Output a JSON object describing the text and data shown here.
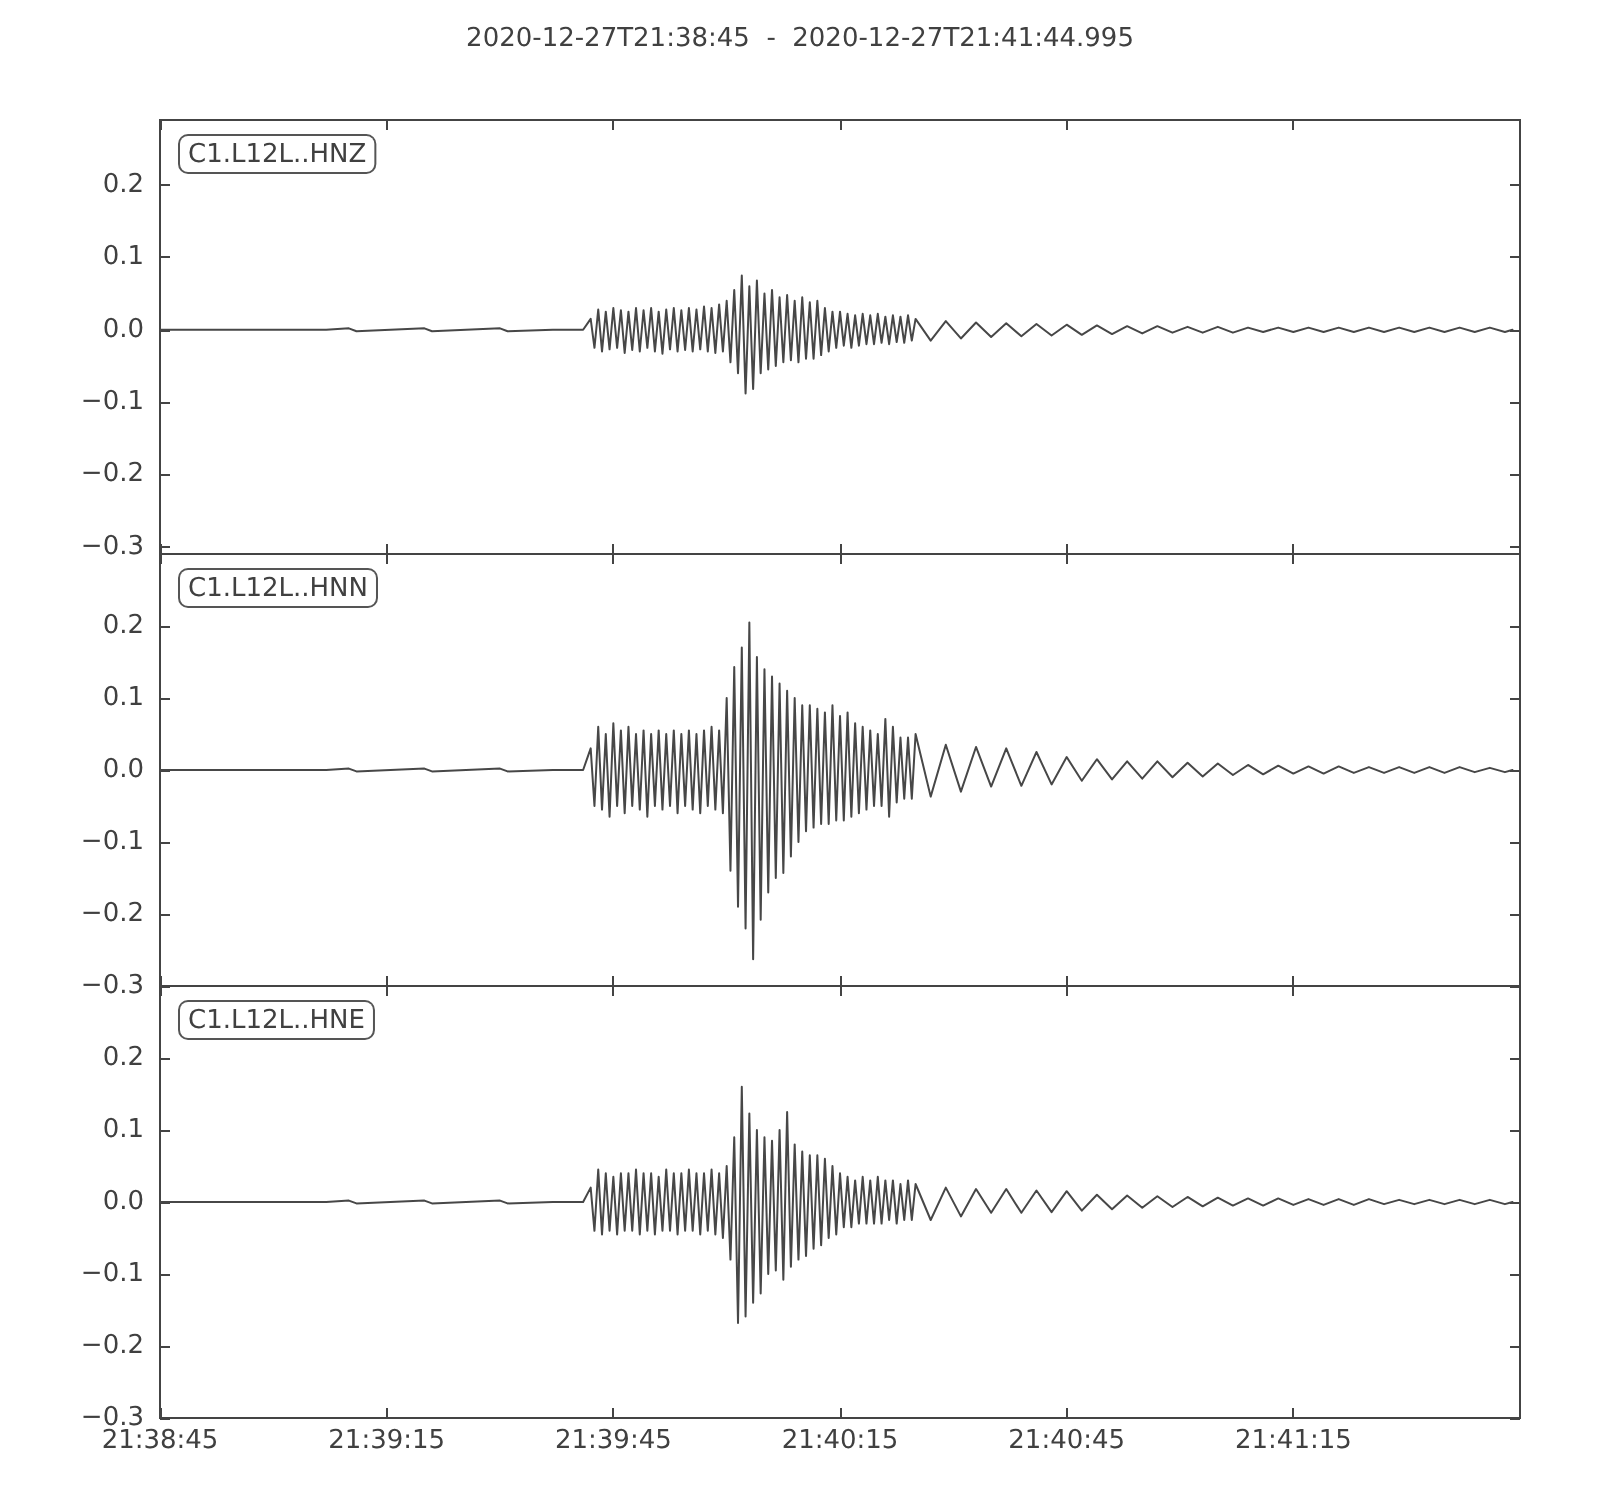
{
  "chart_data": [
    {
      "type": "line",
      "title": "2020-12-27T21:38:45  -  2020-12-27T21:41:44.995",
      "annotations": [
        "C1.L12L..HNZ"
      ],
      "color": "#474747",
      "x": [
        "2020-12-27T21:38:45",
        "2020-12-27T21:39:07",
        "2020-12-27T21:39:10",
        "2020-12-27T21:39:11",
        "2020-12-27T21:39:20",
        "2020-12-27T21:39:21",
        "2020-12-27T21:39:30",
        "2020-12-27T21:39:31",
        "2020-12-27T21:39:37",
        "2020-12-27T21:39:41",
        "2020-12-27T21:39:42",
        "2020-12-27T21:39:42.5",
        "2020-12-27T21:39:43",
        "2020-12-27T21:39:43.5",
        "2020-12-27T21:39:44",
        "2020-12-27T21:39:44.5",
        "2020-12-27T21:39:45",
        "2020-12-27T21:39:45.5",
        "2020-12-27T21:39:46",
        "2020-12-27T21:39:46.5",
        "2020-12-27T21:39:47",
        "2020-12-27T21:39:47.5",
        "2020-12-27T21:39:48",
        "2020-12-27T21:39:48.5",
        "2020-12-27T21:39:49",
        "2020-12-27T21:39:49.5",
        "2020-12-27T21:39:50",
        "2020-12-27T21:39:50.5",
        "2020-12-27T21:39:51",
        "2020-12-27T21:39:51.5",
        "2020-12-27T21:39:52",
        "2020-12-27T21:39:52.5",
        "2020-12-27T21:39:53",
        "2020-12-27T21:39:53.5",
        "2020-12-27T21:39:54",
        "2020-12-27T21:39:54.5",
        "2020-12-27T21:39:55",
        "2020-12-27T21:39:55.5",
        "2020-12-27T21:39:56",
        "2020-12-27T21:39:56.5",
        "2020-12-27T21:39:57",
        "2020-12-27T21:39:57.5",
        "2020-12-27T21:39:58",
        "2020-12-27T21:39:58.5",
        "2020-12-27T21:39:59",
        "2020-12-27T21:39:59.5",
        "2020-12-27T21:40:00",
        "2020-12-27T21:40:00.5",
        "2020-12-27T21:40:01",
        "2020-12-27T21:40:01.5",
        "2020-12-27T21:40:02",
        "2020-12-27T21:40:02.5",
        "2020-12-27T21:40:03",
        "2020-12-27T21:40:03.5",
        "2020-12-27T21:40:04",
        "2020-12-27T21:40:04.5",
        "2020-12-27T21:40:05",
        "2020-12-27T21:40:05.5",
        "2020-12-27T21:40:06",
        "2020-12-27T21:40:06.5",
        "2020-12-27T21:40:07",
        "2020-12-27T21:40:07.5",
        "2020-12-27T21:40:08",
        "2020-12-27T21:40:08.5",
        "2020-12-27T21:40:09",
        "2020-12-27T21:40:09.5",
        "2020-12-27T21:40:10",
        "2020-12-27T21:40:10.5",
        "2020-12-27T21:40:11",
        "2020-12-27T21:40:11.5",
        "2020-12-27T21:40:12",
        "2020-12-27T21:40:12.5",
        "2020-12-27T21:40:13",
        "2020-12-27T21:40:13.5",
        "2020-12-27T21:40:14",
        "2020-12-27T21:40:14.5",
        "2020-12-27T21:40:15",
        "2020-12-27T21:40:15.5",
        "2020-12-27T21:40:16",
        "2020-12-27T21:40:16.5",
        "2020-12-27T21:40:17",
        "2020-12-27T21:40:17.5",
        "2020-12-27T21:40:18",
        "2020-12-27T21:40:18.5",
        "2020-12-27T21:40:19",
        "2020-12-27T21:40:19.5",
        "2020-12-27T21:40:20",
        "2020-12-27T21:40:20.5",
        "2020-12-27T21:40:21",
        "2020-12-27T21:40:21.5",
        "2020-12-27T21:40:22",
        "2020-12-27T21:40:22.5",
        "2020-12-27T21:40:23",
        "2020-12-27T21:40:23.5",
        "2020-12-27T21:40:24",
        "2020-12-27T21:40:24.5",
        "2020-12-27T21:40:25",
        "2020-12-27T21:40:27",
        "2020-12-27T21:40:29",
        "2020-12-27T21:40:31",
        "2020-12-27T21:40:33",
        "2020-12-27T21:40:35",
        "2020-12-27T21:40:37",
        "2020-12-27T21:40:39",
        "2020-12-27T21:40:41",
        "2020-12-27T21:40:43",
        "2020-12-27T21:40:45",
        "2020-12-27T21:40:47",
        "2020-12-27T21:40:49",
        "2020-12-27T21:40:51",
        "2020-12-27T21:40:53",
        "2020-12-27T21:40:55",
        "2020-12-27T21:40:57",
        "2020-12-27T21:40:59",
        "2020-12-27T21:41:01",
        "2020-12-27T21:41:03",
        "2020-12-27T21:41:05",
        "2020-12-27T21:41:07",
        "2020-12-27T21:41:09",
        "2020-12-27T21:41:11",
        "2020-12-27T21:41:13",
        "2020-12-27T21:41:15",
        "2020-12-27T21:41:17",
        "2020-12-27T21:41:19",
        "2020-12-27T21:41:21",
        "2020-12-27T21:41:23",
        "2020-12-27T21:41:25",
        "2020-12-27T21:41:27",
        "2020-12-27T21:41:29",
        "2020-12-27T21:41:31",
        "2020-12-27T21:41:33",
        "2020-12-27T21:41:35",
        "2020-12-27T21:41:37",
        "2020-12-27T21:41:39",
        "2020-12-27T21:41:41",
        "2020-12-27T21:41:43",
        "2020-12-27T21:41:44"
      ],
      "values": [
        0,
        0,
        0.002,
        -0.002,
        0.002,
        -0.002,
        0.002,
        -0.002,
        0,
        0,
        0.015,
        -0.025,
        0.028,
        -0.03,
        0.025,
        -0.027,
        0.03,
        -0.025,
        0.027,
        -0.032,
        0.025,
        -0.028,
        0.03,
        -0.03,
        0.027,
        -0.025,
        0.03,
        -0.03,
        0.025,
        -0.033,
        0.028,
        -0.027,
        0.03,
        -0.03,
        0.027,
        -0.028,
        0.03,
        -0.03,
        0.028,
        -0.027,
        0.032,
        -0.03,
        0.03,
        -0.032,
        0.035,
        -0.03,
        0.04,
        -0.045,
        0.055,
        -0.06,
        0.075,
        -0.088,
        0.06,
        -0.082,
        0.068,
        -0.06,
        0.05,
        -0.055,
        0.055,
        -0.05,
        0.045,
        -0.045,
        0.048,
        -0.042,
        0.04,
        -0.045,
        0.045,
        -0.04,
        0.038,
        -0.04,
        0.04,
        -0.035,
        0.03,
        -0.03,
        0.025,
        -0.025,
        0.025,
        -0.022,
        0.022,
        -0.025,
        0.02,
        -0.022,
        0.022,
        -0.02,
        0.02,
        -0.02,
        0.022,
        -0.018,
        0.018,
        -0.02,
        0.02,
        -0.017,
        0.018,
        -0.018,
        0.02,
        -0.015,
        0.015,
        -0.015,
        0.012,
        -0.012,
        0.01,
        -0.01,
        0.009,
        -0.009,
        0.008,
        -0.008,
        0.007,
        -0.007,
        0.006,
        -0.006,
        0.005,
        -0.005,
        0.005,
        -0.004,
        0.004,
        -0.004,
        0.004,
        -0.004,
        0.003,
        -0.003,
        0.003,
        -0.003,
        0.003,
        -0.003,
        0.003,
        -0.003,
        0.003,
        -0.003,
        0.003,
        -0.003,
        0.003,
        -0.003,
        0.003,
        -0.003,
        0.003,
        -0.003,
        0
      ],
      "xlim": [
        "2020-12-27T21:38:45",
        "2020-12-27T21:41:44.995"
      ],
      "xticks": [
        {
          "value": "2020-12-27T21:38:45",
          "label": null
        },
        {
          "value": "2020-12-27T21:39:15",
          "label": null
        },
        {
          "value": "2020-12-27T21:39:45",
          "label": null
        },
        {
          "value": "2020-12-27T21:40:15",
          "label": null
        },
        {
          "value": "2020-12-27T21:40:45",
          "label": null
        },
        {
          "value": "2020-12-27T21:41:15",
          "label": null
        }
      ],
      "ylim": [
        -0.31,
        0.29
      ],
      "yticks": [
        {
          "value": -0.3,
          "label": "−0.3"
        },
        {
          "value": -0.2,
          "label": "−0.2"
        },
        {
          "value": -0.1,
          "label": "−0.1"
        },
        {
          "value": 0,
          "label": "0.0"
        },
        {
          "value": 0.1,
          "label": "0.1"
        },
        {
          "value": 0.2,
          "label": "0.2"
        }
      ],
      "tick_labels": "y"
    },
    {
      "type": "line",
      "annotations": [
        "C1.L12L..HNN"
      ],
      "color": "#474747",
      "x": [
        "2020-12-27T21:38:45",
        "2020-12-27T21:39:07",
        "2020-12-27T21:39:10",
        "2020-12-27T21:39:11",
        "2020-12-27T21:39:20",
        "2020-12-27T21:39:21",
        "2020-12-27T21:39:30",
        "2020-12-27T21:39:31",
        "2020-12-27T21:39:37",
        "2020-12-27T21:39:41",
        "2020-12-27T21:39:42",
        "2020-12-27T21:39:42.5",
        "2020-12-27T21:39:43",
        "2020-12-27T21:39:43.5",
        "2020-12-27T21:39:44",
        "2020-12-27T21:39:44.5",
        "2020-12-27T21:39:45",
        "2020-12-27T21:39:45.5",
        "2020-12-27T21:39:46",
        "2020-12-27T21:39:46.5",
        "2020-12-27T21:39:47",
        "2020-12-27T21:39:47.5",
        "2020-12-27T21:39:48",
        "2020-12-27T21:39:48.5",
        "2020-12-27T21:39:49",
        "2020-12-27T21:39:49.5",
        "2020-12-27T21:39:50",
        "2020-12-27T21:39:50.5",
        "2020-12-27T21:39:51",
        "2020-12-27T21:39:51.5",
        "2020-12-27T21:39:52",
        "2020-12-27T21:39:52.5",
        "2020-12-27T21:39:53",
        "2020-12-27T21:39:53.5",
        "2020-12-27T21:39:54",
        "2020-12-27T21:39:54.5",
        "2020-12-27T21:39:55",
        "2020-12-27T21:39:55.5",
        "2020-12-27T21:39:56",
        "2020-12-27T21:39:56.5",
        "2020-12-27T21:39:57",
        "2020-12-27T21:39:57.5",
        "2020-12-27T21:39:58",
        "2020-12-27T21:39:58.5",
        "2020-12-27T21:39:59",
        "2020-12-27T21:39:59.5",
        "2020-12-27T21:40:00",
        "2020-12-27T21:40:00.5",
        "2020-12-27T21:40:01",
        "2020-12-27T21:40:01.5",
        "2020-12-27T21:40:02",
        "2020-12-27T21:40:02.5",
        "2020-12-27T21:40:03",
        "2020-12-27T21:40:03.5",
        "2020-12-27T21:40:04",
        "2020-12-27T21:40:04.5",
        "2020-12-27T21:40:05",
        "2020-12-27T21:40:05.5",
        "2020-12-27T21:40:06",
        "2020-12-27T21:40:06.5",
        "2020-12-27T21:40:07",
        "2020-12-27T21:40:07.5",
        "2020-12-27T21:40:08",
        "2020-12-27T21:40:08.5",
        "2020-12-27T21:40:09",
        "2020-12-27T21:40:09.5",
        "2020-12-27T21:40:10",
        "2020-12-27T21:40:10.5",
        "2020-12-27T21:40:11",
        "2020-12-27T21:40:11.5",
        "2020-12-27T21:40:12",
        "2020-12-27T21:40:12.5",
        "2020-12-27T21:40:13",
        "2020-12-27T21:40:13.5",
        "2020-12-27T21:40:14",
        "2020-12-27T21:40:14.5",
        "2020-12-27T21:40:15",
        "2020-12-27T21:40:15.5",
        "2020-12-27T21:40:16",
        "2020-12-27T21:40:16.5",
        "2020-12-27T21:40:17",
        "2020-12-27T21:40:17.5",
        "2020-12-27T21:40:18",
        "2020-12-27T21:40:18.5",
        "2020-12-27T21:40:19",
        "2020-12-27T21:40:19.5",
        "2020-12-27T21:40:20",
        "2020-12-27T21:40:20.5",
        "2020-12-27T21:40:21",
        "2020-12-27T21:40:21.5",
        "2020-12-27T21:40:22",
        "2020-12-27T21:40:22.5",
        "2020-12-27T21:40:23",
        "2020-12-27T21:40:23.5",
        "2020-12-27T21:40:24",
        "2020-12-27T21:40:24.5",
        "2020-12-27T21:40:25",
        "2020-12-27T21:40:27",
        "2020-12-27T21:40:29",
        "2020-12-27T21:40:31",
        "2020-12-27T21:40:33",
        "2020-12-27T21:40:35",
        "2020-12-27T21:40:37",
        "2020-12-27T21:40:39",
        "2020-12-27T21:40:41",
        "2020-12-27T21:40:43",
        "2020-12-27T21:40:45",
        "2020-12-27T21:40:47",
        "2020-12-27T21:40:49",
        "2020-12-27T21:40:51",
        "2020-12-27T21:40:53",
        "2020-12-27T21:40:55",
        "2020-12-27T21:40:57",
        "2020-12-27T21:40:59",
        "2020-12-27T21:41:01",
        "2020-12-27T21:41:03",
        "2020-12-27T21:41:05",
        "2020-12-27T21:41:07",
        "2020-12-27T21:41:09",
        "2020-12-27T21:41:11",
        "2020-12-27T21:41:13",
        "2020-12-27T21:41:15",
        "2020-12-27T21:41:17",
        "2020-12-27T21:41:19",
        "2020-12-27T21:41:21",
        "2020-12-27T21:41:23",
        "2020-12-27T21:41:25",
        "2020-12-27T21:41:27",
        "2020-12-27T21:41:29",
        "2020-12-27T21:41:31",
        "2020-12-27T21:41:33",
        "2020-12-27T21:41:35",
        "2020-12-27T21:41:37",
        "2020-12-27T21:41:39",
        "2020-12-27T21:41:41",
        "2020-12-27T21:41:43",
        "2020-12-27T21:41:44"
      ],
      "values": [
        0,
        0,
        0.002,
        -0.002,
        0.002,
        -0.002,
        0.002,
        -0.002,
        0,
        0,
        0.03,
        -0.05,
        0.06,
        -0.055,
        0.05,
        -0.065,
        0.065,
        -0.05,
        0.055,
        -0.06,
        0.06,
        -0.05,
        0.05,
        -0.055,
        0.055,
        -0.065,
        0.05,
        -0.05,
        0.055,
        -0.055,
        0.05,
        -0.05,
        0.055,
        -0.06,
        0.05,
        -0.05,
        0.055,
        -0.055,
        0.05,
        -0.06,
        0.055,
        -0.05,
        0.06,
        -0.055,
        0.055,
        -0.06,
        0.1,
        -0.14,
        0.143,
        -0.19,
        0.17,
        -0.22,
        0.205,
        -0.263,
        0.157,
        -0.208,
        0.14,
        -0.17,
        0.13,
        -0.15,
        0.12,
        -0.143,
        0.11,
        -0.12,
        0.1,
        -0.1,
        0.09,
        -0.085,
        0.09,
        -0.08,
        0.085,
        -0.075,
        0.08,
        -0.075,
        0.09,
        -0.07,
        0.075,
        -0.07,
        0.08,
        -0.065,
        0.065,
        -0.06,
        0.06,
        -0.055,
        0.055,
        -0.05,
        0.05,
        -0.05,
        0.071,
        -0.065,
        0.06,
        -0.045,
        0.045,
        -0.04,
        0.045,
        -0.04,
        0.05,
        -0.037,
        0.035,
        -0.03,
        0.032,
        -0.023,
        0.03,
        -0.022,
        0.025,
        -0.02,
        0.018,
        -0.015,
        0.015,
        -0.013,
        0.012,
        -0.012,
        0.012,
        -0.01,
        0.01,
        -0.009,
        0.009,
        -0.007,
        0.007,
        -0.006,
        0.006,
        -0.005,
        0.005,
        -0.005,
        0.005,
        -0.004,
        0.004,
        -0.004,
        0.004,
        -0.004,
        0.004,
        -0.004,
        0.004,
        -0.003,
        0.003,
        -0.003,
        0
      ],
      "xlim": [
        "2020-12-27T21:38:45",
        "2020-12-27T21:41:44.995"
      ],
      "xticks": [
        {
          "value": "2020-12-27T21:38:45",
          "label": null
        },
        {
          "value": "2020-12-27T21:39:15",
          "label": null
        },
        {
          "value": "2020-12-27T21:39:45",
          "label": null
        },
        {
          "value": "2020-12-27T21:40:15",
          "label": null
        },
        {
          "value": "2020-12-27T21:40:45",
          "label": null
        },
        {
          "value": "2020-12-27T21:41:15",
          "label": null
        }
      ],
      "ylim": [
        -0.3,
        0.3
      ],
      "yticks": [
        {
          "value": -0.3,
          "label": "−0.3"
        },
        {
          "value": -0.2,
          "label": "−0.2"
        },
        {
          "value": -0.1,
          "label": "−0.1"
        },
        {
          "value": 0,
          "label": "0.0"
        },
        {
          "value": 0.1,
          "label": "0.1"
        },
        {
          "value": 0.2,
          "label": "0.2"
        }
      ],
      "tick_labels": "y"
    },
    {
      "type": "line",
      "annotations": [
        "C1.L12L..HNE"
      ],
      "color": "#474747",
      "x": [
        "2020-12-27T21:38:45",
        "2020-12-27T21:39:07",
        "2020-12-27T21:39:10",
        "2020-12-27T21:39:11",
        "2020-12-27T21:39:20",
        "2020-12-27T21:39:21",
        "2020-12-27T21:39:30",
        "2020-12-27T21:39:31",
        "2020-12-27T21:39:37",
        "2020-12-27T21:39:41",
        "2020-12-27T21:39:42",
        "2020-12-27T21:39:42.5",
        "2020-12-27T21:39:43",
        "2020-12-27T21:39:43.5",
        "2020-12-27T21:39:44",
        "2020-12-27T21:39:44.5",
        "2020-12-27T21:39:45",
        "2020-12-27T21:39:45.5",
        "2020-12-27T21:39:46",
        "2020-12-27T21:39:46.5",
        "2020-12-27T21:39:47",
        "2020-12-27T21:39:47.5",
        "2020-12-27T21:39:48",
        "2020-12-27T21:39:48.5",
        "2020-12-27T21:39:49",
        "2020-12-27T21:39:49.5",
        "2020-12-27T21:39:50",
        "2020-12-27T21:39:50.5",
        "2020-12-27T21:39:51",
        "2020-12-27T21:39:51.5",
        "2020-12-27T21:39:52",
        "2020-12-27T21:39:52.5",
        "2020-12-27T21:39:53",
        "2020-12-27T21:39:53.5",
        "2020-12-27T21:39:54",
        "2020-12-27T21:39:54.5",
        "2020-12-27T21:39:55",
        "2020-12-27T21:39:55.5",
        "2020-12-27T21:39:56",
        "2020-12-27T21:39:56.5",
        "2020-12-27T21:39:57",
        "2020-12-27T21:39:57.5",
        "2020-12-27T21:39:58",
        "2020-12-27T21:39:58.5",
        "2020-12-27T21:39:59",
        "2020-12-27T21:39:59.5",
        "2020-12-27T21:40:00",
        "2020-12-27T21:40:00.5",
        "2020-12-27T21:40:01",
        "2020-12-27T21:40:01.5",
        "2020-12-27T21:40:02",
        "2020-12-27T21:40:02.5",
        "2020-12-27T21:40:03",
        "2020-12-27T21:40:03.5",
        "2020-12-27T21:40:04",
        "2020-12-27T21:40:04.5",
        "2020-12-27T21:40:05",
        "2020-12-27T21:40:05.5",
        "2020-12-27T21:40:06",
        "2020-12-27T21:40:06.5",
        "2020-12-27T21:40:07",
        "2020-12-27T21:40:07.5",
        "2020-12-27T21:40:08",
        "2020-12-27T21:40:08.5",
        "2020-12-27T21:40:09",
        "2020-12-27T21:40:09.5",
        "2020-12-27T21:40:10",
        "2020-12-27T21:40:10.5",
        "2020-12-27T21:40:11",
        "2020-12-27T21:40:11.5",
        "2020-12-27T21:40:12",
        "2020-12-27T21:40:12.5",
        "2020-12-27T21:40:13",
        "2020-12-27T21:40:13.5",
        "2020-12-27T21:40:14",
        "2020-12-27T21:40:14.5",
        "2020-12-27T21:40:15",
        "2020-12-27T21:40:15.5",
        "2020-12-27T21:40:16",
        "2020-12-27T21:40:16.5",
        "2020-12-27T21:40:17",
        "2020-12-27T21:40:17.5",
        "2020-12-27T21:40:18",
        "2020-12-27T21:40:18.5",
        "2020-12-27T21:40:19",
        "2020-12-27T21:40:19.5",
        "2020-12-27T21:40:20",
        "2020-12-27T21:40:20.5",
        "2020-12-27T21:40:21",
        "2020-12-27T21:40:21.5",
        "2020-12-27T21:40:22",
        "2020-12-27T21:40:22.5",
        "2020-12-27T21:40:23",
        "2020-12-27T21:40:23.5",
        "2020-12-27T21:40:24",
        "2020-12-27T21:40:24.5",
        "2020-12-27T21:40:25",
        "2020-12-27T21:40:27",
        "2020-12-27T21:40:29",
        "2020-12-27T21:40:31",
        "2020-12-27T21:40:33",
        "2020-12-27T21:40:35",
        "2020-12-27T21:40:37",
        "2020-12-27T21:40:39",
        "2020-12-27T21:40:41",
        "2020-12-27T21:40:43",
        "2020-12-27T21:40:45",
        "2020-12-27T21:40:47",
        "2020-12-27T21:40:49",
        "2020-12-27T21:40:51",
        "2020-12-27T21:40:53",
        "2020-12-27T21:40:55",
        "2020-12-27T21:40:57",
        "2020-12-27T21:40:59",
        "2020-12-27T21:41:01",
        "2020-12-27T21:41:03",
        "2020-12-27T21:41:05",
        "2020-12-27T21:41:07",
        "2020-12-27T21:41:09",
        "2020-12-27T21:41:11",
        "2020-12-27T21:41:13",
        "2020-12-27T21:41:15",
        "2020-12-27T21:41:17",
        "2020-12-27T21:41:19",
        "2020-12-27T21:41:21",
        "2020-12-27T21:41:23",
        "2020-12-27T21:41:25",
        "2020-12-27T21:41:27",
        "2020-12-27T21:41:29",
        "2020-12-27T21:41:31",
        "2020-12-27T21:41:33",
        "2020-12-27T21:41:35",
        "2020-12-27T21:41:37",
        "2020-12-27T21:41:39",
        "2020-12-27T21:41:41",
        "2020-12-27T21:41:43",
        "2020-12-27T21:41:44"
      ],
      "values": [
        0,
        0,
        0.002,
        -0.002,
        0.002,
        -0.002,
        0.002,
        -0.002,
        0,
        0,
        0.02,
        -0.04,
        0.045,
        -0.045,
        0.04,
        -0.04,
        0.035,
        -0.045,
        0.04,
        -0.04,
        0.04,
        -0.04,
        0.045,
        -0.045,
        0.04,
        -0.04,
        0.04,
        -0.045,
        0.035,
        -0.04,
        0.045,
        -0.04,
        0.04,
        -0.045,
        0.04,
        -0.04,
        0.045,
        -0.04,
        0.04,
        -0.045,
        0.04,
        -0.04,
        0.045,
        -0.045,
        0.04,
        -0.05,
        0.05,
        -0.08,
        0.09,
        -0.168,
        0.16,
        -0.159,
        0.123,
        -0.14,
        0.1,
        -0.127,
        0.09,
        -0.1,
        0.085,
        -0.095,
        0.1,
        -0.108,
        0.125,
        -0.09,
        0.08,
        -0.08,
        0.07,
        -0.075,
        0.065,
        -0.065,
        0.065,
        -0.06,
        0.06,
        -0.05,
        0.05,
        -0.045,
        0.04,
        -0.035,
        0.035,
        -0.035,
        0.03,
        -0.03,
        0.035,
        -0.03,
        0.03,
        -0.03,
        0.035,
        -0.03,
        0.03,
        -0.025,
        0.03,
        -0.03,
        0.025,
        -0.025,
        0.03,
        -0.025,
        0.025,
        -0.025,
        0.02,
        -0.02,
        0.018,
        -0.015,
        0.018,
        -0.015,
        0.016,
        -0.014,
        0.015,
        -0.012,
        0.01,
        -0.01,
        0.009,
        -0.008,
        0.008,
        -0.007,
        0.007,
        -0.006,
        0.006,
        -0.005,
        0.005,
        -0.005,
        0.005,
        -0.004,
        0.004,
        -0.004,
        0.004,
        -0.004,
        0.004,
        -0.003,
        0.003,
        -0.003,
        0.003,
        -0.003,
        0.003,
        -0.003,
        0.003,
        -0.003,
        0
      ],
      "xlim": [
        "2020-12-27T21:38:45",
        "2020-12-27T21:41:44.995"
      ],
      "xticks": [
        {
          "value": "2020-12-27T21:38:45",
          "label": "21:38:45"
        },
        {
          "value": "2020-12-27T21:39:15",
          "label": "21:39:15"
        },
        {
          "value": "2020-12-27T21:39:45",
          "label": "21:39:45"
        },
        {
          "value": "2020-12-27T21:40:15",
          "label": "21:40:15"
        },
        {
          "value": "2020-12-27T21:40:45",
          "label": "21:40:45"
        },
        {
          "value": "2020-12-27T21:41:15",
          "label": "21:41:15"
        }
      ],
      "ylim": [
        -0.3,
        0.3
      ],
      "yticks": [
        {
          "value": -0.3,
          "label": "−0.3"
        },
        {
          "value": -0.2,
          "label": "−0.2"
        },
        {
          "value": -0.1,
          "label": "−0.1"
        },
        {
          "value": 0,
          "label": "0.0"
        },
        {
          "value": 0.1,
          "label": "0.1"
        },
        {
          "value": 0.2,
          "label": "0.2"
        }
      ]
    }
  ]
}
